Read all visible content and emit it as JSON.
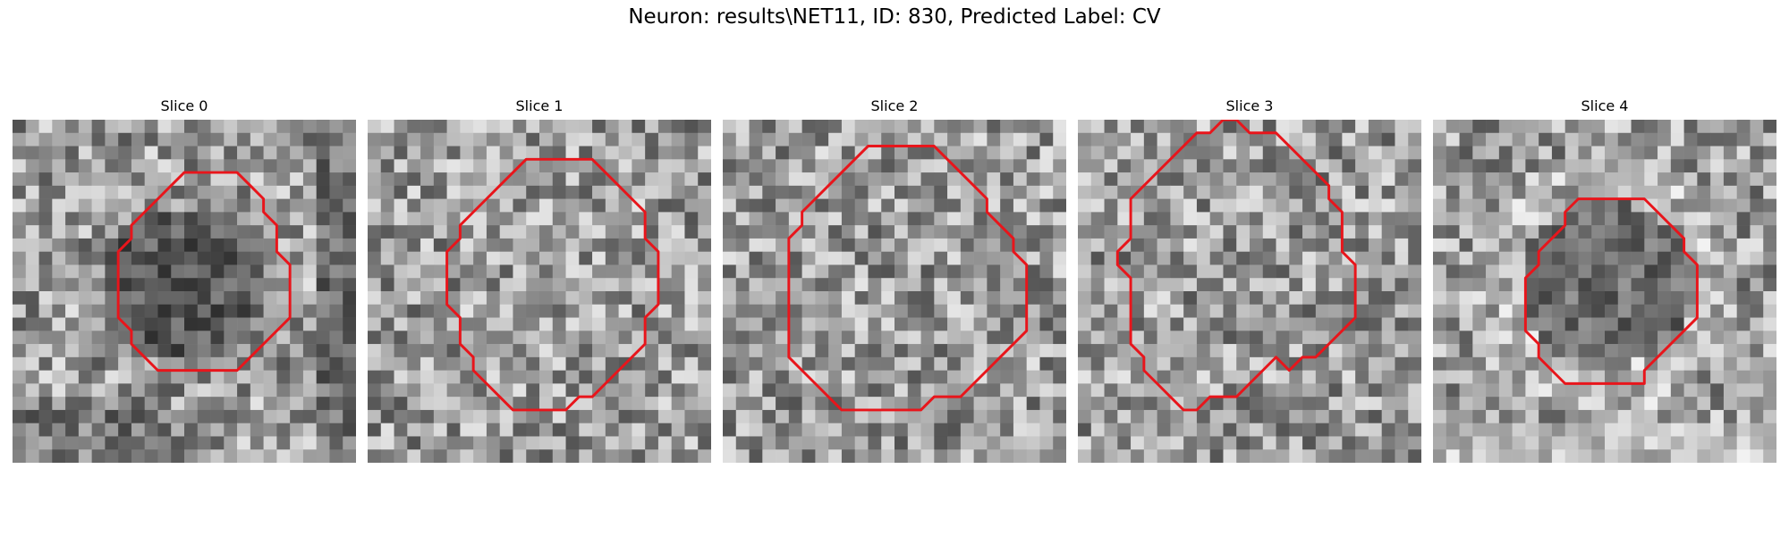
{
  "figure": {
    "title": "Neuron: results\\NET11, ID: 830, Predicted Label: CV"
  },
  "panels": [
    {
      "title": "Slice 0",
      "seed": 11,
      "profile": "dark-blob",
      "contour": [
        [
          14,
          4
        ],
        [
          17,
          4
        ],
        [
          18,
          5
        ],
        [
          19,
          6
        ],
        [
          19,
          7
        ],
        [
          20,
          8
        ],
        [
          20,
          10
        ],
        [
          21,
          11
        ],
        [
          21,
          12
        ],
        [
          21,
          15
        ],
        [
          20,
          16
        ],
        [
          19,
          17
        ],
        [
          18,
          18
        ],
        [
          17,
          19
        ],
        [
          14,
          19
        ],
        [
          13,
          19
        ],
        [
          11,
          19
        ],
        [
          10,
          18
        ],
        [
          9,
          17
        ],
        [
          9,
          16
        ],
        [
          8,
          15
        ],
        [
          8,
          13
        ],
        [
          8,
          11
        ],
        [
          8,
          10
        ],
        [
          9,
          9
        ],
        [
          9,
          8
        ],
        [
          10,
          7
        ],
        [
          11,
          6
        ],
        [
          12,
          5
        ],
        [
          13,
          4
        ]
      ]
    },
    {
      "title": "Slice 1",
      "seed": 23,
      "profile": "noisy",
      "contour": [
        [
          13,
          3
        ],
        [
          17,
          3
        ],
        [
          18,
          4
        ],
        [
          19,
          5
        ],
        [
          20,
          6
        ],
        [
          21,
          7
        ],
        [
          21,
          9
        ],
        [
          22,
          10
        ],
        [
          22,
          12
        ],
        [
          22,
          14
        ],
        [
          21,
          15
        ],
        [
          21,
          17
        ],
        [
          20,
          18
        ],
        [
          19,
          19
        ],
        [
          18,
          20
        ],
        [
          17,
          21
        ],
        [
          16,
          21
        ],
        [
          15,
          22
        ],
        [
          12,
          22
        ],
        [
          11,
          22
        ],
        [
          10,
          21
        ],
        [
          9,
          20
        ],
        [
          8,
          19
        ],
        [
          8,
          18
        ],
        [
          7,
          17
        ],
        [
          7,
          15
        ],
        [
          6,
          14
        ],
        [
          6,
          12
        ],
        [
          6,
          10
        ],
        [
          7,
          9
        ],
        [
          7,
          8
        ],
        [
          8,
          7
        ],
        [
          9,
          6
        ],
        [
          10,
          5
        ],
        [
          11,
          4
        ],
        [
          12,
          3
        ]
      ]
    },
    {
      "title": "Slice 2",
      "seed": 37,
      "profile": "noisy",
      "contour": [
        [
          12,
          2
        ],
        [
          16,
          2
        ],
        [
          17,
          3
        ],
        [
          18,
          4
        ],
        [
          19,
          5
        ],
        [
          20,
          6
        ],
        [
          20,
          7
        ],
        [
          21,
          8
        ],
        [
          22,
          9
        ],
        [
          22,
          10
        ],
        [
          23,
          11
        ],
        [
          23,
          14
        ],
        [
          23,
          16
        ],
        [
          22,
          17
        ],
        [
          21,
          18
        ],
        [
          20,
          19
        ],
        [
          19,
          20
        ],
        [
          18,
          21
        ],
        [
          16,
          21
        ],
        [
          15,
          22
        ],
        [
          13,
          22
        ],
        [
          9,
          22
        ],
        [
          8,
          21
        ],
        [
          7,
          20
        ],
        [
          6,
          19
        ],
        [
          5,
          18
        ],
        [
          5,
          16
        ],
        [
          5,
          13
        ],
        [
          5,
          9
        ],
        [
          6,
          8
        ],
        [
          6,
          7
        ],
        [
          7,
          6
        ],
        [
          8,
          5
        ],
        [
          9,
          4
        ],
        [
          10,
          3
        ],
        [
          11,
          2
        ]
      ]
    },
    {
      "title": "Slice 3",
      "seed": 51,
      "profile": "noisy",
      "contour": [
        [
          10,
          1
        ],
        [
          11,
          0
        ],
        [
          12,
          0
        ],
        [
          13,
          1
        ],
        [
          15,
          1
        ],
        [
          16,
          2
        ],
        [
          17,
          3
        ],
        [
          18,
          4
        ],
        [
          19,
          5
        ],
        [
          19,
          6
        ],
        [
          20,
          7
        ],
        [
          20,
          9
        ],
        [
          20,
          10
        ],
        [
          21,
          11
        ],
        [
          21,
          15
        ],
        [
          20,
          16
        ],
        [
          19,
          17
        ],
        [
          18,
          18
        ],
        [
          17,
          18
        ],
        [
          16,
          19
        ],
        [
          15,
          18
        ],
        [
          14,
          19
        ],
        [
          13,
          20
        ],
        [
          12,
          21
        ],
        [
          10,
          21
        ],
        [
          9,
          22
        ],
        [
          8,
          22
        ],
        [
          7,
          21
        ],
        [
          6,
          20
        ],
        [
          5,
          19
        ],
        [
          5,
          18
        ],
        [
          4,
          17
        ],
        [
          4,
          15
        ],
        [
          4,
          12
        ],
        [
          3,
          11
        ],
        [
          3,
          10
        ],
        [
          4,
          9
        ],
        [
          4,
          7
        ],
        [
          4,
          6
        ],
        [
          5,
          5
        ],
        [
          6,
          4
        ],
        [
          7,
          3
        ],
        [
          8,
          2
        ],
        [
          9,
          1
        ]
      ]
    },
    {
      "title": "Slice 4",
      "seed": 67,
      "profile": "dark-blob-ring",
      "contour": [
        [
          11,
          6
        ],
        [
          16,
          6
        ],
        [
          17,
          7
        ],
        [
          18,
          8
        ],
        [
          19,
          9
        ],
        [
          19,
          10
        ],
        [
          20,
          11
        ],
        [
          20,
          15
        ],
        [
          19,
          16
        ],
        [
          18,
          17
        ],
        [
          17,
          18
        ],
        [
          16,
          19
        ],
        [
          16,
          20
        ],
        [
          15,
          20
        ],
        [
          13,
          20
        ],
        [
          10,
          20
        ],
        [
          9,
          19
        ],
        [
          8,
          18
        ],
        [
          8,
          17
        ],
        [
          7,
          16
        ],
        [
          7,
          15
        ],
        [
          7,
          12
        ],
        [
          8,
          11
        ],
        [
          8,
          10
        ],
        [
          9,
          9
        ],
        [
          10,
          8
        ],
        [
          10,
          7
        ]
      ]
    }
  ],
  "contour_color": "#e8151b",
  "grid_size": 26
}
